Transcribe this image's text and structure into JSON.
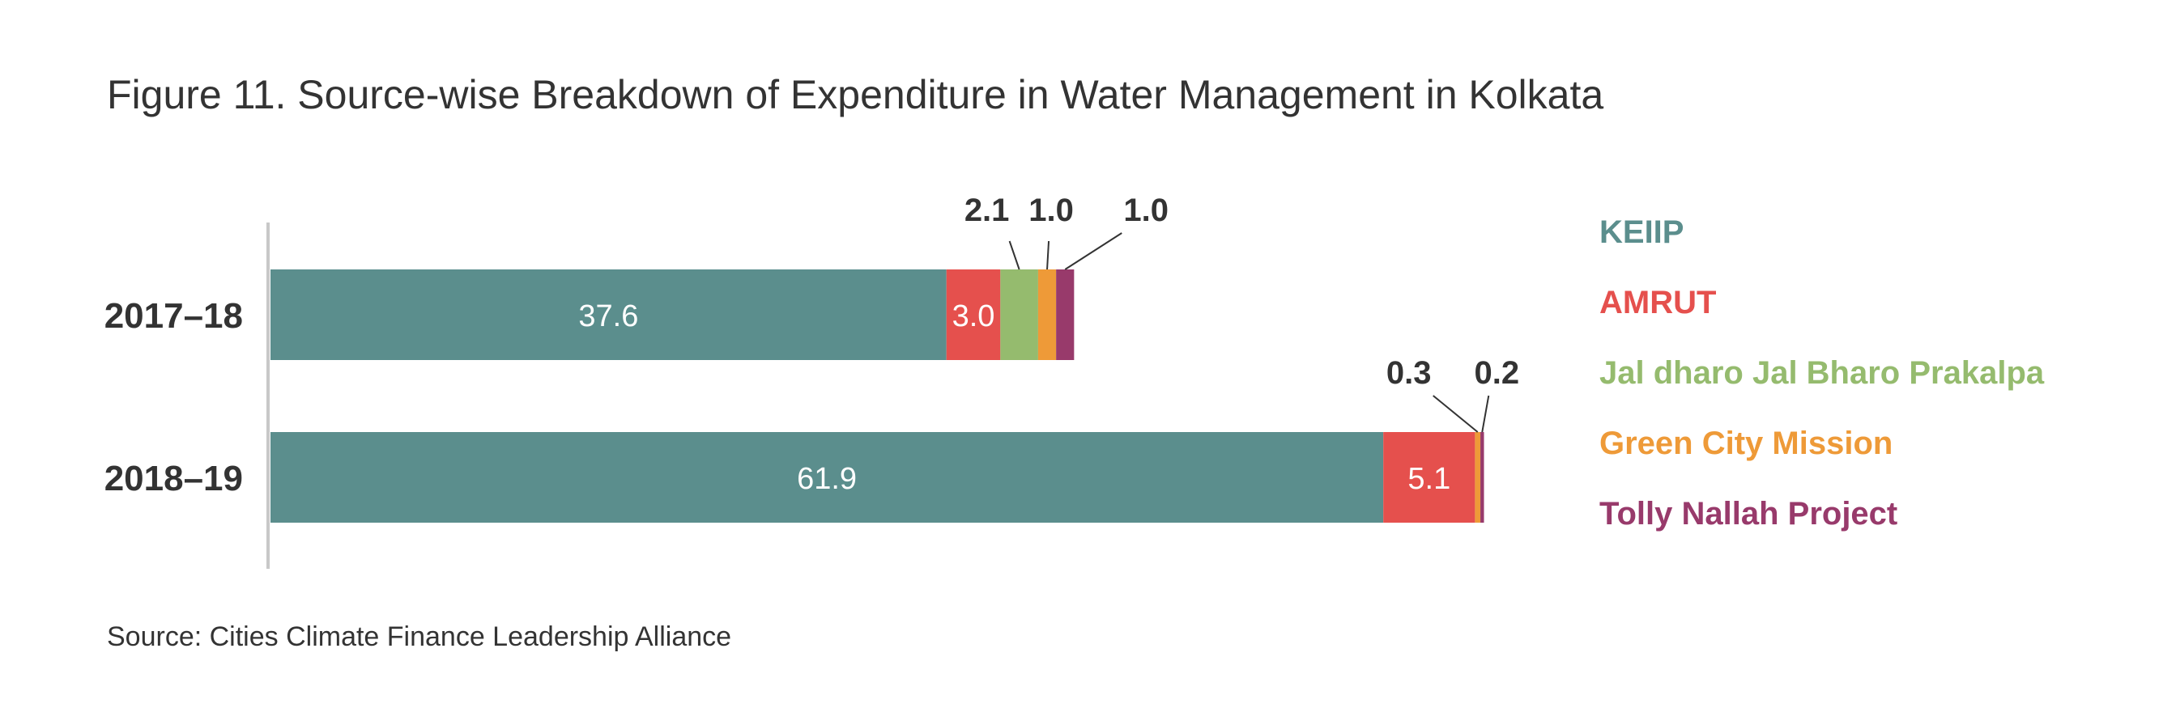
{
  "title": "Figure 11. Source-wise Breakdown of Expenditure in Water Management in Kolkata",
  "source": "Source: Cities Climate Finance Leadership Alliance",
  "chart_data": {
    "type": "bar",
    "orientation": "horizontal",
    "stacked": true,
    "categories": [
      "2017–18",
      "2018–19"
    ],
    "series": [
      {
        "name": "KEIIP",
        "color": "#5b8e8d",
        "values": [
          37.6,
          61.9
        ],
        "labels": [
          "37.6",
          "61.9"
        ]
      },
      {
        "name": "AMRUT",
        "color": "#e5504d",
        "values": [
          3.0,
          5.1
        ],
        "labels": [
          "3.0",
          "5.1"
        ]
      },
      {
        "name": "Jal dharo Jal Bharo Prakalpa",
        "color": "#95bb6e",
        "values": [
          2.1,
          0
        ],
        "labels": [
          "2.1",
          ""
        ]
      },
      {
        "name": "Green City Mission",
        "color": "#ee9a38",
        "values": [
          1.0,
          0.3
        ],
        "labels": [
          "1.0",
          "0.3"
        ]
      },
      {
        "name": "Tolly Nallah Project",
        "color": "#983a6b",
        "values": [
          1.0,
          0.2
        ],
        "labels": [
          "1.0",
          "0.2"
        ]
      }
    ],
    "legend_position": "right",
    "grid": false
  }
}
